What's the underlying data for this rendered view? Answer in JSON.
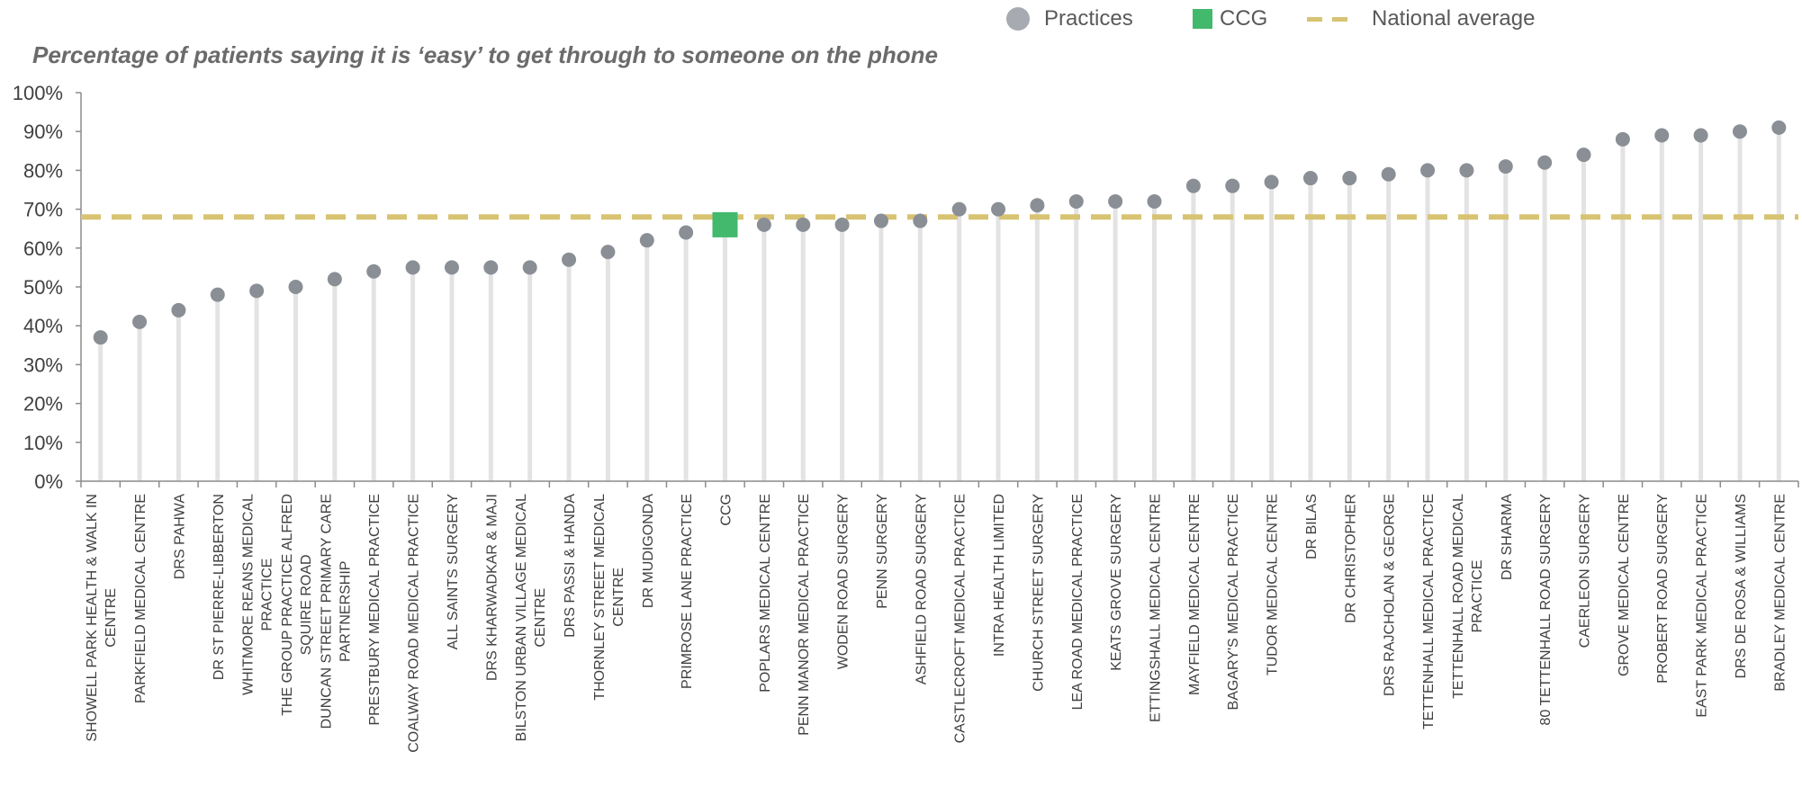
{
  "chart_data": {
    "type": "scatter",
    "title": "Percentage of patients saying it is ‘easy’ to get through to someone on the phone",
    "xlabel": "",
    "ylabel": "",
    "ylim": [
      0,
      100
    ],
    "y_ticks": [
      "0%",
      "10%",
      "20%",
      "30%",
      "40%",
      "50%",
      "60%",
      "70%",
      "80%",
      "90%",
      "100%"
    ],
    "legend": {
      "position": "top-right",
      "items": [
        {
          "label": "Practices",
          "marker": "circle",
          "color": "#a7abb1"
        },
        {
          "label": "CCG",
          "marker": "square",
          "color": "#42b96d"
        },
        {
          "label": "National average",
          "marker": "dashed-line",
          "color": "#d7c372"
        }
      ]
    },
    "national_average": 68,
    "categories": [
      [
        "SHOWELL PARK HEALTH & WALK IN",
        "CENTRE"
      ],
      [
        "PARKFIELD MEDICAL CENTRE"
      ],
      [
        "DRS PAHWA"
      ],
      [
        "DR ST PIERRE-LIBBERTON"
      ],
      [
        "WHITMORE REANS MEDICAL",
        "PRACTICE"
      ],
      [
        "THE GROUP PRACTICE ALFRED",
        "SQUIRE ROAD"
      ],
      [
        "DUNCAN STREET PRIMARY CARE",
        "PARTNERSHIP"
      ],
      [
        "PRESTBURY MEDICAL PRACTICE"
      ],
      [
        "COALWAY ROAD MEDICAL PRACTICE"
      ],
      [
        "ALL SAINTS SURGERY"
      ],
      [
        "DRS KHARWADKAR & MAJI"
      ],
      [
        "BILSTON URBAN VILLAGE MEDICAL",
        "CENTRE"
      ],
      [
        "DRS PASSI & HANDA"
      ],
      [
        "THORNLEY STREET MEDICAL",
        "CENTRE"
      ],
      [
        "DR MUDIGONDA"
      ],
      [
        "PRIMROSE LANE PRACTICE"
      ],
      [
        "CCG"
      ],
      [
        "POPLARS MEDICAL CENTRE"
      ],
      [
        "PENN MANOR MEDICAL PRACTICE"
      ],
      [
        "WODEN ROAD SURGERY"
      ],
      [
        "PENN SURGERY"
      ],
      [
        "ASHFIELD ROAD SURGERY"
      ],
      [
        "CASTLECROFT MEDICAL PRACTICE"
      ],
      [
        "INTRA HEALTH LIMITED"
      ],
      [
        "CHURCH STREET SURGERY"
      ],
      [
        "LEA ROAD MEDICAL PRACTICE"
      ],
      [
        "KEATS GROVE SURGERY"
      ],
      [
        "ETTINGSHALL MEDICAL CENTRE"
      ],
      [
        "MAYFIELD MEDICAL CENTRE"
      ],
      [
        "BAGARY'S MEDICAL PRACTICE"
      ],
      [
        "TUDOR MEDICAL CENTRE"
      ],
      [
        "DR BILAS"
      ],
      [
        "DR CHRISTOPHER"
      ],
      [
        "DRS RAJCHOLAN & GEORGE"
      ],
      [
        "TETTENHALL MEDICAL PRACTICE"
      ],
      [
        "TETTENHALL ROAD MEDICAL",
        "PRACTICE"
      ],
      [
        "DR SHARMA"
      ],
      [
        "80 TETTENHALL ROAD SURGERY"
      ],
      [
        "CAERLEON SURGERY"
      ],
      [
        "GROVE MEDICAL CENTRE"
      ],
      [
        "PROBERT ROAD SURGERY"
      ],
      [
        "EAST PARK MEDICAL PRACTICE"
      ],
      [
        "DRS DE ROSA & WILLIAMS"
      ],
      [
        "BRADLEY MEDICAL CENTRE"
      ]
    ],
    "values": [
      37,
      41,
      44,
      48,
      49,
      50,
      52,
      54,
      55,
      55,
      55,
      55,
      57,
      59,
      62,
      64,
      66,
      66,
      66,
      66,
      67,
      67,
      70,
      70,
      71,
      72,
      72,
      72,
      76,
      76,
      77,
      78,
      78,
      79,
      80,
      80,
      81,
      82,
      84,
      88,
      89,
      89,
      90,
      91
    ],
    "ccg_index": 16,
    "grid": false
  }
}
